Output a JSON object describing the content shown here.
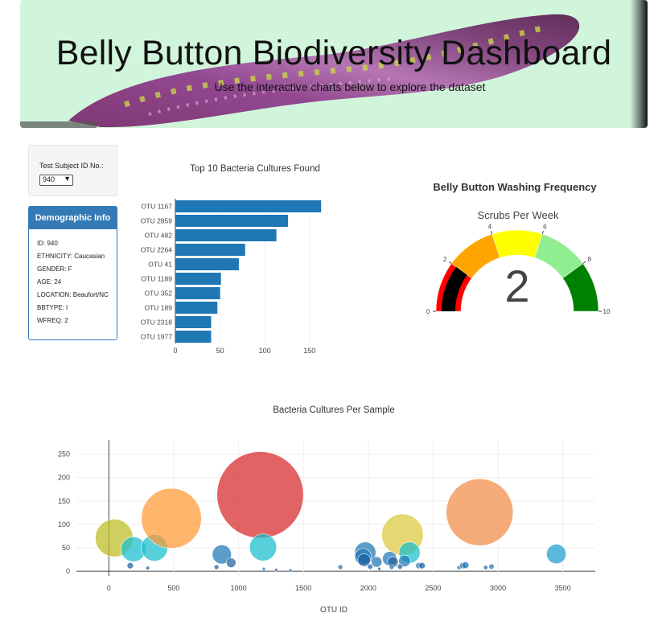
{
  "header": {
    "title": "Belly Button Biodiversity Dashboard",
    "subtitle": "Use the interactive charts below to explore the dataset"
  },
  "selector": {
    "label": "Test Subject ID No.:",
    "selected": "940"
  },
  "demographics": {
    "title": "Demographic Info",
    "lines": [
      "ID: 940",
      "ETHNICITY: Caucasian",
      "GENDER: F",
      "AGE: 24",
      "LOCATION: Beaufort/NC",
      "BBTYPE: I",
      "WFREQ: 2"
    ]
  },
  "colors": {
    "bar": "#1f77b4",
    "panel": "#337ab7",
    "header_bg": "#d1f5db"
  },
  "chart_data": [
    {
      "type": "bar",
      "orientation": "horizontal",
      "title": "Top 10 Bacteria Cultures Found",
      "categories": [
        "OTU 1167",
        "OTU 2859",
        "OTU 482",
        "OTU 2264",
        "OTU 41",
        "OTU 1189",
        "OTU 352",
        "OTU 189",
        "OTU 2318",
        "OTU 1977"
      ],
      "values": [
        163,
        126,
        113,
        78,
        71,
        51,
        50,
        47,
        40,
        40
      ],
      "xticks": [
        0,
        50,
        100,
        150
      ],
      "xlim": [
        0,
        170
      ]
    },
    {
      "type": "gauge",
      "title": "Belly Button Washing Frequency",
      "subtitle": "Scrubs Per Week",
      "value": 2,
      "range": [
        0,
        10
      ],
      "ticks": [
        0,
        2,
        4,
        6,
        8,
        10
      ],
      "steps": [
        {
          "range": [
            0,
            2
          ],
          "color": "red"
        },
        {
          "range": [
            2,
            4
          ],
          "color": "orange"
        },
        {
          "range": [
            4,
            6
          ],
          "color": "yellow"
        },
        {
          "range": [
            6,
            8
          ],
          "color": "lightgreen"
        },
        {
          "range": [
            8,
            10
          ],
          "color": "green"
        }
      ],
      "bar_color": "black"
    },
    {
      "type": "scatter",
      "title": "Bacteria Cultures Per Sample",
      "xlabel": "OTU ID",
      "ylabel": "",
      "xticks": [
        0,
        500,
        1000,
        1500,
        2000,
        2500,
        3000,
        3500
      ],
      "yticks": [
        0,
        50,
        100,
        150,
        200,
        250
      ],
      "xlim": [
        -250,
        3750
      ],
      "ylim": [
        -10,
        280
      ],
      "points": [
        {
          "x": 41,
          "y": 71,
          "color": "#bcbd22"
        },
        {
          "x": 189,
          "y": 47,
          "color": "#17becf"
        },
        {
          "x": 352,
          "y": 50,
          "color": "#17becf"
        },
        {
          "x": 482,
          "y": 113,
          "color": "#ff9933"
        },
        {
          "x": 1167,
          "y": 163,
          "color": "#d62728"
        },
        {
          "x": 1189,
          "y": 51,
          "color": "#17becf"
        },
        {
          "x": 1977,
          "y": 40,
          "color": "#1f77b4"
        },
        {
          "x": 2264,
          "y": 78,
          "color": "#dbc73a"
        },
        {
          "x": 2318,
          "y": 40,
          "color": "#17becf"
        },
        {
          "x": 2859,
          "y": 126,
          "color": "#f28c47"
        },
        {
          "x": 871,
          "y": 36,
          "color": "#1f77b4"
        },
        {
          "x": 943,
          "y": 18,
          "color": "#1f5f9f"
        },
        {
          "x": 1960,
          "y": 31,
          "color": "#1f77b4"
        },
        {
          "x": 1968,
          "y": 24,
          "color": "#1f5f9f"
        },
        {
          "x": 2065,
          "y": 20,
          "color": "#1f77b4"
        },
        {
          "x": 2165,
          "y": 27,
          "color": "#1f77b4"
        },
        {
          "x": 2190,
          "y": 20,
          "color": "#1f5f9f"
        },
        {
          "x": 2280,
          "y": 22,
          "color": "#1f77b4"
        },
        {
          "x": 3450,
          "y": 37,
          "color": "#1f9cd0"
        },
        {
          "x": 165,
          "y": 12,
          "color": "#1f5f9f"
        },
        {
          "x": 830,
          "y": 9,
          "color": "#1f5f9f"
        },
        {
          "x": 1785,
          "y": 9,
          "color": "#1f77b4"
        },
        {
          "x": 2015,
          "y": 10,
          "color": "#1f5f9f"
        },
        {
          "x": 2180,
          "y": 9,
          "color": "#1f77b4"
        },
        {
          "x": 2245,
          "y": 10,
          "color": "#1f5f9f"
        },
        {
          "x": 2390,
          "y": 12,
          "color": "#1f77b4"
        },
        {
          "x": 2415,
          "y": 12,
          "color": "#1f5f9f"
        },
        {
          "x": 2700,
          "y": 8,
          "color": "#1f77b4"
        },
        {
          "x": 2730,
          "y": 12,
          "color": "#1f5f9f"
        },
        {
          "x": 2750,
          "y": 13,
          "color": "#1f77b4"
        },
        {
          "x": 2905,
          "y": 8,
          "color": "#1f5f9f"
        },
        {
          "x": 2950,
          "y": 10,
          "color": "#1f77b4"
        },
        {
          "x": 300,
          "y": 7,
          "color": "#1f5f9f"
        },
        {
          "x": 1195,
          "y": 5,
          "color": "#1f77b4"
        },
        {
          "x": 1290,
          "y": 3,
          "color": "#1f5f9f"
        },
        {
          "x": 1400,
          "y": 2,
          "color": "#1f77b4"
        },
        {
          "x": 2085,
          "y": 5,
          "color": "#1f5f9f"
        }
      ]
    }
  ]
}
